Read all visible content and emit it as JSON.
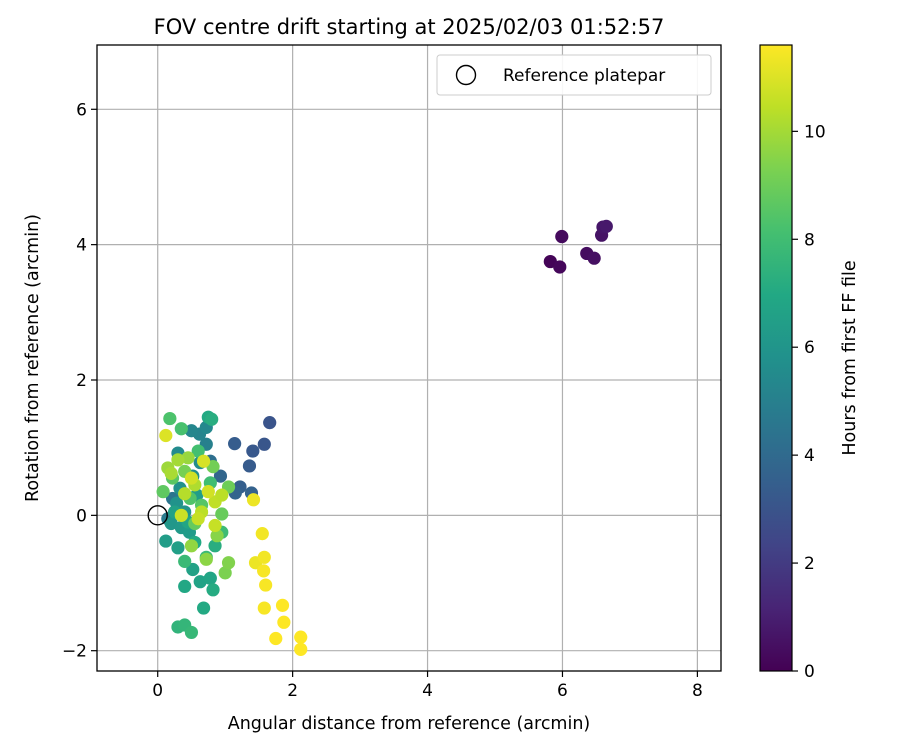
{
  "chart_data": {
    "type": "scatter",
    "title": "FOV centre drift starting at 2025/02/03 01:52:57",
    "xlabel": "Angular distance from reference (arcmin)",
    "ylabel": "Rotation from reference (arcmin)",
    "xlim": [
      -0.9,
      8.35
    ],
    "ylim": [
      -2.3,
      6.95
    ],
    "xticks": [
      0,
      2,
      4,
      6,
      8
    ],
    "yticks": [
      -2,
      0,
      2,
      4,
      6
    ],
    "grid": true,
    "legend_position": "top-right",
    "legend": [
      "Reference platepar"
    ],
    "reference_point": {
      "name": "Reference platepar",
      "x": 0,
      "y": 0
    },
    "colorbar": {
      "label": "Hours from first FF file",
      "min": 0,
      "max": 11.6,
      "ticks": [
        0,
        2,
        4,
        6,
        8,
        10
      ],
      "colormap": "viridis"
    },
    "points": [
      {
        "x": 5.82,
        "y": 3.75,
        "c": 0.1
      },
      {
        "x": 5.96,
        "y": 3.67,
        "c": 0.2
      },
      {
        "x": 5.99,
        "y": 4.12,
        "c": 0.3
      },
      {
        "x": 6.36,
        "y": 3.87,
        "c": 0.4
      },
      {
        "x": 6.47,
        "y": 3.8,
        "c": 0.5
      },
      {
        "x": 6.58,
        "y": 4.14,
        "c": 0.6
      },
      {
        "x": 6.6,
        "y": 4.26,
        "c": 0.7
      },
      {
        "x": 6.65,
        "y": 4.27,
        "c": 0.8
      },
      {
        "x": 1.66,
        "y": 1.37,
        "c": 3.0
      },
      {
        "x": 1.58,
        "y": 1.05,
        "c": 3.1
      },
      {
        "x": 1.41,
        "y": 0.95,
        "c": 3.2
      },
      {
        "x": 1.36,
        "y": 0.73,
        "c": 3.3
      },
      {
        "x": 1.14,
        "y": 1.06,
        "c": 3.4
      },
      {
        "x": 1.22,
        "y": 0.42,
        "c": 3.5
      },
      {
        "x": 1.39,
        "y": 0.33,
        "c": 3.6
      },
      {
        "x": 1.15,
        "y": 0.33,
        "c": 3.7
      },
      {
        "x": 0.93,
        "y": 0.58,
        "c": 3.8
      },
      {
        "x": 0.78,
        "y": 0.8,
        "c": 4.2
      },
      {
        "x": 0.22,
        "y": 0.25,
        "c": 4.5
      },
      {
        "x": 0.15,
        "y": -0.05,
        "c": 4.8
      },
      {
        "x": 0.72,
        "y": 1.05,
        "c": 5.0
      },
      {
        "x": 0.62,
        "y": 1.2,
        "c": 5.2
      },
      {
        "x": 0.5,
        "y": 1.25,
        "c": 5.3
      },
      {
        "x": 0.72,
        "y": 1.3,
        "c": 5.4
      },
      {
        "x": 0.3,
        "y": 0.92,
        "c": 5.5
      },
      {
        "x": 0.63,
        "y": 0.78,
        "c": 5.6
      },
      {
        "x": 0.52,
        "y": 0.58,
        "c": 5.7
      },
      {
        "x": 0.33,
        "y": 0.4,
        "c": 5.8
      },
      {
        "x": 0.28,
        "y": 0.18,
        "c": 5.9
      },
      {
        "x": 0.4,
        "y": 0.05,
        "c": 6.0
      },
      {
        "x": 0.2,
        "y": -0.12,
        "c": 6.1
      },
      {
        "x": 0.35,
        "y": -0.18,
        "c": 6.2
      },
      {
        "x": 0.47,
        "y": -0.25,
        "c": 6.3
      },
      {
        "x": 0.12,
        "y": -0.38,
        "c": 6.4
      },
      {
        "x": 0.3,
        "y": -0.48,
        "c": 6.5
      },
      {
        "x": 0.52,
        "y": -0.8,
        "c": 6.6
      },
      {
        "x": 0.63,
        "y": -0.98,
        "c": 6.7
      },
      {
        "x": 0.78,
        "y": -0.93,
        "c": 6.8
      },
      {
        "x": 0.4,
        "y": -1.05,
        "c": 6.9
      },
      {
        "x": 0.68,
        "y": -1.37,
        "c": 7.0
      },
      {
        "x": 0.82,
        "y": -1.1,
        "c": 7.1
      },
      {
        "x": 0.75,
        "y": 1.45,
        "c": 7.0
      },
      {
        "x": 0.8,
        "y": 1.42,
        "c": 7.2
      },
      {
        "x": 0.58,
        "y": 0.3,
        "c": 6.4
      },
      {
        "x": 0.25,
        "y": 0.05,
        "c": 6.6
      },
      {
        "x": 0.45,
        "y": -0.1,
        "c": 6.8
      },
      {
        "x": 0.55,
        "y": -0.4,
        "c": 7.0
      },
      {
        "x": 0.85,
        "y": -0.45,
        "c": 7.2
      },
      {
        "x": 0.3,
        "y": -1.65,
        "c": 7.5
      },
      {
        "x": 0.4,
        "y": -1.62,
        "c": 7.6
      },
      {
        "x": 0.5,
        "y": -1.73,
        "c": 7.7
      },
      {
        "x": 0.72,
        "y": -0.62,
        "c": 7.8
      },
      {
        "x": 0.95,
        "y": -0.25,
        "c": 7.9
      },
      {
        "x": 0.4,
        "y": -0.68,
        "c": 7.8
      },
      {
        "x": 0.78,
        "y": 0.48,
        "c": 8.0
      },
      {
        "x": 0.6,
        "y": 0.95,
        "c": 8.1
      },
      {
        "x": 0.35,
        "y": 1.28,
        "c": 8.2
      },
      {
        "x": 0.18,
        "y": 1.43,
        "c": 8.3
      },
      {
        "x": 0.48,
        "y": 0.25,
        "c": 8.4
      },
      {
        "x": 0.65,
        "y": 0.15,
        "c": 8.5
      },
      {
        "x": 0.22,
        "y": 0.55,
        "c": 8.6
      },
      {
        "x": 0.08,
        "y": 0.35,
        "c": 8.7
      },
      {
        "x": 0.55,
        "y": -0.12,
        "c": 8.8
      },
      {
        "x": 0.95,
        "y": 0.02,
        "c": 8.9
      },
      {
        "x": 1.05,
        "y": 0.42,
        "c": 9.0
      },
      {
        "x": 0.82,
        "y": 0.72,
        "c": 9.1
      },
      {
        "x": 0.4,
        "y": 0.65,
        "c": 9.2
      },
      {
        "x": 1.0,
        "y": -0.85,
        "c": 9.3
      },
      {
        "x": 1.05,
        "y": -0.7,
        "c": 9.4
      },
      {
        "x": 0.88,
        "y": -0.3,
        "c": 9.5
      },
      {
        "x": 0.72,
        "y": -0.65,
        "c": 9.6
      },
      {
        "x": 0.5,
        "y": -0.45,
        "c": 9.7
      },
      {
        "x": 0.45,
        "y": 0.85,
        "c": 9.8
      },
      {
        "x": 0.15,
        "y": 0.7,
        "c": 9.9
      },
      {
        "x": 0.3,
        "y": 0.82,
        "c": 10.0
      },
      {
        "x": 0.2,
        "y": 0.62,
        "c": 10.1
      },
      {
        "x": 0.55,
        "y": 0.45,
        "c": 10.2
      },
      {
        "x": 0.4,
        "y": 0.32,
        "c": 10.3
      },
      {
        "x": 0.65,
        "y": 0.05,
        "c": 10.4
      },
      {
        "x": 0.85,
        "y": 0.2,
        "c": 10.5
      },
      {
        "x": 0.6,
        "y": -0.05,
        "c": 10.6
      },
      {
        "x": 0.35,
        "y": 0.0,
        "c": 10.7
      },
      {
        "x": 0.75,
        "y": 0.35,
        "c": 10.8
      },
      {
        "x": 0.68,
        "y": 0.8,
        "c": 10.9
      },
      {
        "x": 0.12,
        "y": 1.18,
        "c": 11.0
      },
      {
        "x": 0.5,
        "y": 0.55,
        "c": 10.8
      },
      {
        "x": 0.85,
        "y": -0.15,
        "c": 10.6
      },
      {
        "x": 0.95,
        "y": 0.3,
        "c": 10.4
      },
      {
        "x": 1.42,
        "y": 0.23,
        "c": 11.3
      },
      {
        "x": 1.45,
        "y": -0.7,
        "c": 11.3
      },
      {
        "x": 1.55,
        "y": -0.27,
        "c": 11.4
      },
      {
        "x": 1.58,
        "y": -0.62,
        "c": 11.4
      },
      {
        "x": 1.57,
        "y": -0.82,
        "c": 11.5
      },
      {
        "x": 1.6,
        "y": -1.03,
        "c": 11.5
      },
      {
        "x": 1.58,
        "y": -1.37,
        "c": 11.5
      },
      {
        "x": 1.75,
        "y": -1.82,
        "c": 11.6
      },
      {
        "x": 1.85,
        "y": -1.33,
        "c": 11.6
      },
      {
        "x": 1.87,
        "y": -1.58,
        "c": 11.6
      },
      {
        "x": 2.12,
        "y": -1.8,
        "c": 11.6
      },
      {
        "x": 2.12,
        "y": -1.98,
        "c": 11.6
      }
    ]
  }
}
